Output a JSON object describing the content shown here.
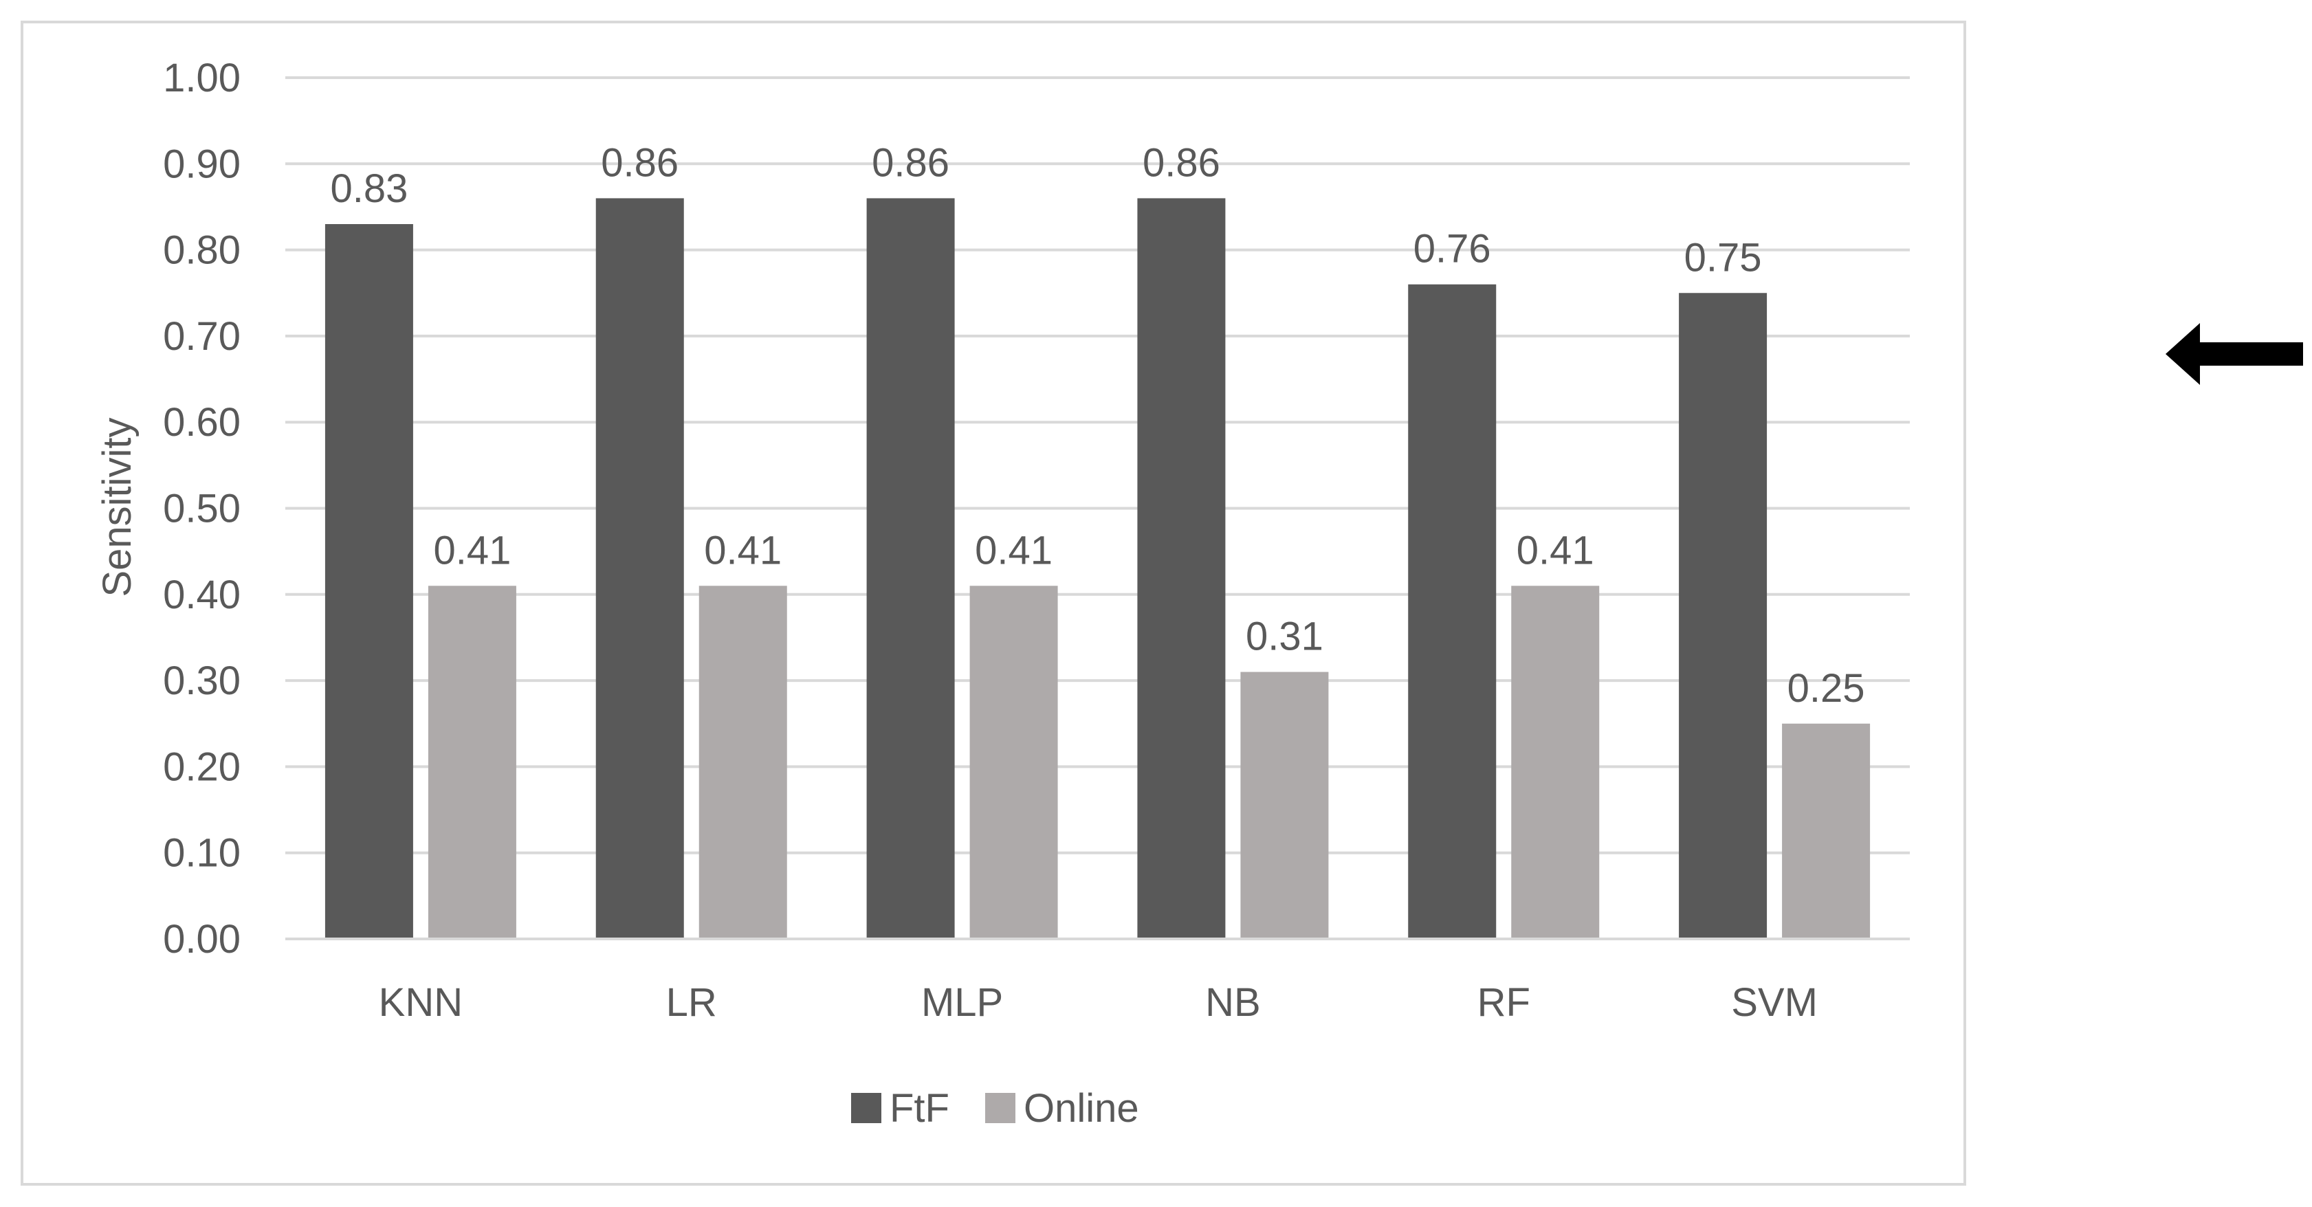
{
  "chart_data": {
    "type": "bar",
    "title": "",
    "xlabel": "",
    "ylabel": "Sensitivity",
    "ylim": [
      0,
      1.0
    ],
    "yticks": [
      "0.00",
      "0.10",
      "0.20",
      "0.30",
      "0.40",
      "0.50",
      "0.60",
      "0.70",
      "0.80",
      "0.90",
      "1.00"
    ],
    "categories": [
      "KNN",
      "LR",
      "MLP",
      "NB",
      "RF",
      "SVM"
    ],
    "series": [
      {
        "name": "FtF",
        "color": "#595959",
        "values": [
          0.83,
          0.86,
          0.86,
          0.86,
          0.76,
          0.75
        ],
        "labels": [
          "0.83",
          "0.86",
          "0.86",
          "0.86",
          "0.76",
          "0.75"
        ]
      },
      {
        "name": "Online",
        "color": "#aeaaaa",
        "values": [
          0.41,
          0.41,
          0.41,
          0.31,
          0.41,
          0.25
        ],
        "labels": [
          "0.41",
          "0.41",
          "0.41",
          "0.31",
          "0.41",
          "0.25"
        ]
      }
    ],
    "grid": true,
    "legend_position": "bottom-center"
  },
  "annotation": {
    "arrow_icon": "left-arrow-icon",
    "arrow_color": "#000000"
  }
}
